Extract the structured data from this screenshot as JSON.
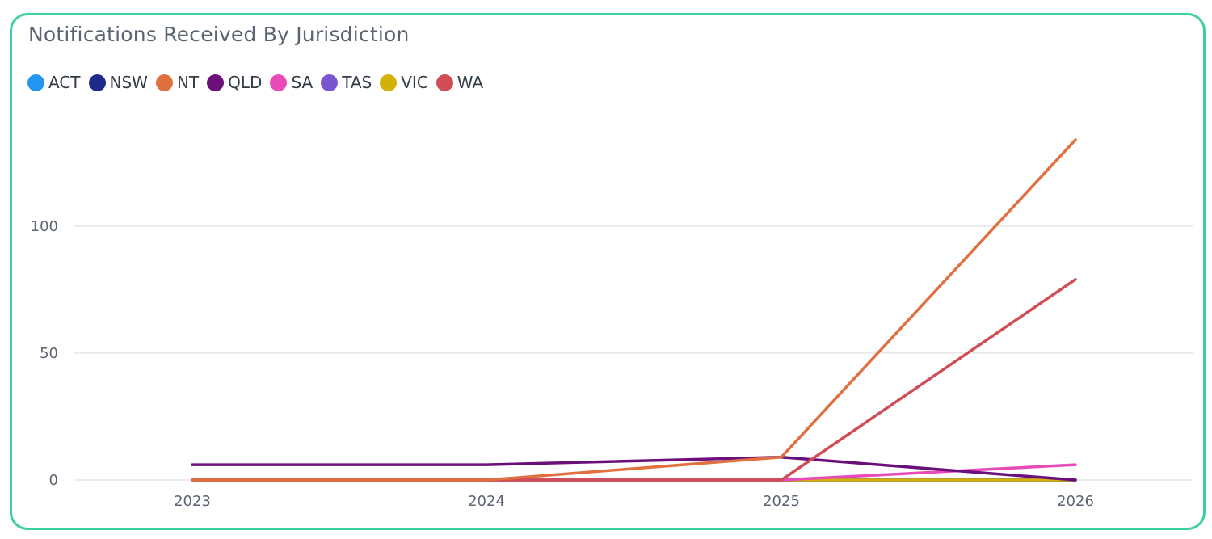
{
  "card": {
    "title": "Notifications Received By Jurisdiction"
  },
  "colors": {
    "border": "#3ccf9f",
    "grid": "#e6e6e6"
  },
  "chart_data": {
    "type": "line",
    "title": "Notifications Received By Jurisdiction",
    "xlabel": "",
    "ylabel": "",
    "x": [
      "2023",
      "2024",
      "2025",
      "2026"
    ],
    "ylim": [
      0,
      134
    ],
    "yticks": [
      "0",
      "50",
      "100"
    ],
    "ytick_values": [
      0,
      50,
      100
    ],
    "grid": true,
    "legend_position": "top-left",
    "series": [
      {
        "name": "ACT",
        "color": "#2196f3",
        "values": [
          0,
          0,
          0,
          0
        ]
      },
      {
        "name": "NSW",
        "color": "#1e2a8c",
        "values": [
          0,
          0,
          0,
          0
        ]
      },
      {
        "name": "NT",
        "color": "#e07040",
        "values": [
          0,
          0,
          9,
          134
        ]
      },
      {
        "name": "QLD",
        "color": "#6b0f7a",
        "values": [
          6,
          6,
          9,
          0
        ]
      },
      {
        "name": "SA",
        "color": "#e84bb8",
        "values": [
          0,
          0,
          0,
          6
        ]
      },
      {
        "name": "TAS",
        "color": "#7a55d1",
        "values": [
          0,
          0,
          0,
          0
        ]
      },
      {
        "name": "VIC",
        "color": "#d4b106",
        "values": [
          0,
          0,
          0,
          0
        ]
      },
      {
        "name": "WA",
        "color": "#d14d55",
        "values": [
          0,
          0,
          0,
          79
        ]
      }
    ]
  }
}
